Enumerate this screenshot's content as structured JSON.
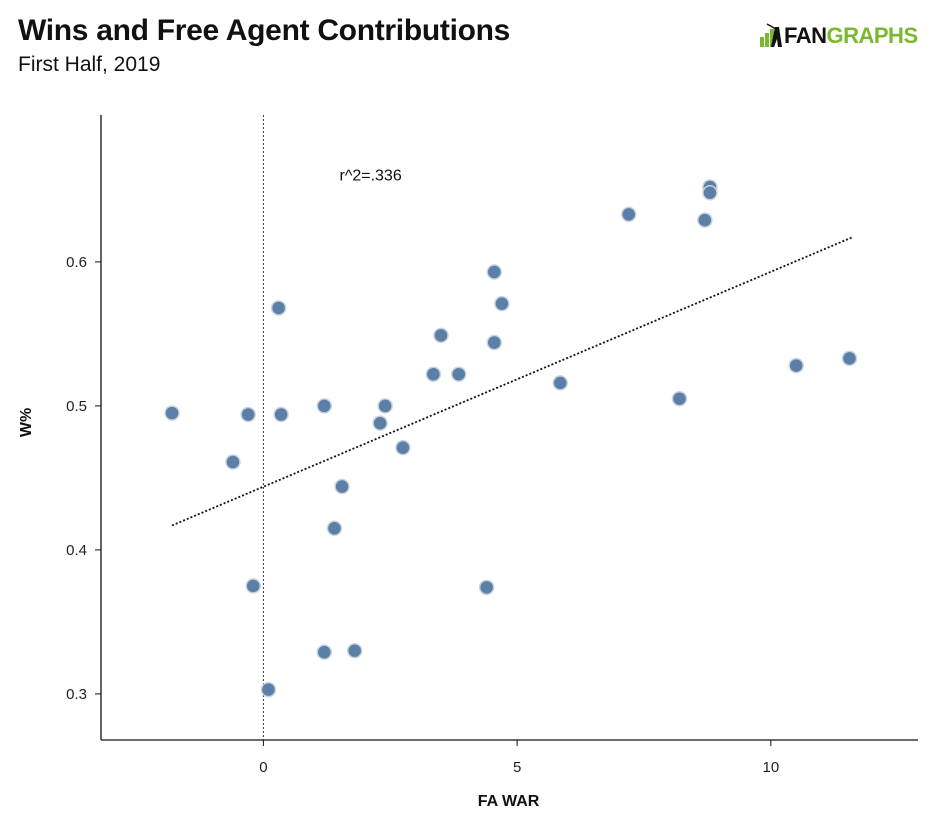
{
  "header": {
    "title": "Wins and Free Agent Contributions",
    "subtitle": "First Half, 2019",
    "logo_fan": "FAN",
    "logo_graphs": "GRAPHS"
  },
  "colors": {
    "point_fill": "#5b7fa6",
    "point_stroke": "#c9d3de",
    "logo_green": "#7ab82d",
    "axis": "#111111"
  },
  "chart_data": {
    "type": "scatter",
    "xlabel": "FA WAR",
    "ylabel": "W%",
    "xlim": [
      -3.2,
      12.9
    ],
    "ylim": [
      0.268,
      0.702
    ],
    "xticks": [
      0,
      5,
      10
    ],
    "yticks": [
      0.3,
      0.4,
      0.5,
      0.6
    ],
    "xtick_labels": [
      "0",
      "5",
      "10"
    ],
    "ytick_labels": [
      "0.3",
      "0.4",
      "0.5",
      "0.6"
    ],
    "grid": false,
    "annotation": "r^2=.336",
    "annotation_position": [
      1.5,
      0.66
    ],
    "zero_reference_line_x": 0,
    "trendline": {
      "x": [
        -1.8,
        11.6
      ],
      "y": [
        0.417,
        0.617
      ]
    },
    "points": [
      {
        "x": -1.8,
        "y": 0.495
      },
      {
        "x": -0.6,
        "y": 0.461
      },
      {
        "x": -0.3,
        "y": 0.494
      },
      {
        "x": -0.2,
        "y": 0.375
      },
      {
        "x": 0.1,
        "y": 0.303
      },
      {
        "x": 0.3,
        "y": 0.568
      },
      {
        "x": 0.35,
        "y": 0.494
      },
      {
        "x": 1.2,
        "y": 0.5
      },
      {
        "x": 1.2,
        "y": 0.329
      },
      {
        "x": 1.4,
        "y": 0.415
      },
      {
        "x": 1.55,
        "y": 0.444
      },
      {
        "x": 1.8,
        "y": 0.33
      },
      {
        "x": 2.3,
        "y": 0.488
      },
      {
        "x": 2.4,
        "y": 0.5
      },
      {
        "x": 2.75,
        "y": 0.471
      },
      {
        "x": 3.35,
        "y": 0.522
      },
      {
        "x": 3.5,
        "y": 0.549
      },
      {
        "x": 3.85,
        "y": 0.522
      },
      {
        "x": 4.4,
        "y": 0.374
      },
      {
        "x": 4.55,
        "y": 0.544
      },
      {
        "x": 4.55,
        "y": 0.593
      },
      {
        "x": 4.7,
        "y": 0.571
      },
      {
        "x": 5.85,
        "y": 0.516
      },
      {
        "x": 7.2,
        "y": 0.633
      },
      {
        "x": 8.2,
        "y": 0.505
      },
      {
        "x": 8.7,
        "y": 0.629
      },
      {
        "x": 8.8,
        "y": 0.652
      },
      {
        "x": 8.8,
        "y": 0.648
      },
      {
        "x": 10.5,
        "y": 0.528
      },
      {
        "x": 11.55,
        "y": 0.533
      }
    ]
  }
}
